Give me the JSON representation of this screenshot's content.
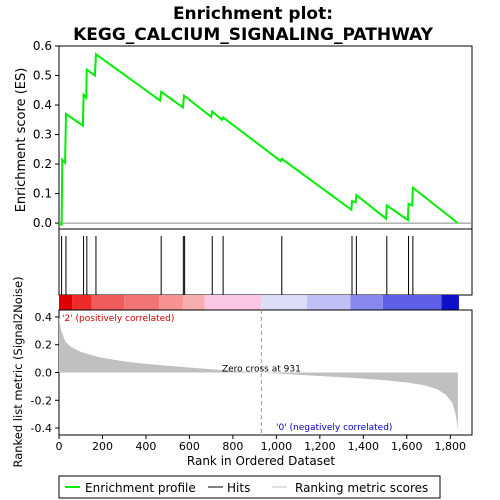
{
  "chart_data": {
    "type": "line",
    "title_line1": "Enrichment plot:",
    "title_line2": "KEGG_CALCIUM_SIGNALING_PATHWAY",
    "es_panel": {
      "ylabel": "Enrichment score (ES)",
      "ylim": [
        -0.02,
        0.6
      ],
      "yticks": [
        "0.0",
        "0.1",
        "0.2",
        "0.3",
        "0.4",
        "0.5",
        "0.6"
      ],
      "ytick_values": [
        0.0,
        0.1,
        0.2,
        0.3,
        0.4,
        0.5,
        0.6
      ],
      "series": {
        "name": "Enrichment profile",
        "color": "#00ee00",
        "x": [
          0,
          12,
          15,
          28,
          32,
          110,
          113,
          125,
          128,
          165,
          170,
          465,
          470,
          570,
          575,
          700,
          705,
          750,
          755,
          1020,
          1025,
          1345,
          1348,
          1365,
          1368,
          1505,
          1508,
          1605,
          1608,
          1625,
          1628,
          1835
        ],
        "y": [
          0.0,
          -0.005,
          0.215,
          0.205,
          0.37,
          0.33,
          0.435,
          0.425,
          0.52,
          0.5,
          0.572,
          0.415,
          0.445,
          0.392,
          0.432,
          0.36,
          0.378,
          0.35,
          0.358,
          0.21,
          0.218,
          0.045,
          0.075,
          0.07,
          0.095,
          0.015,
          0.06,
          0.01,
          0.065,
          0.06,
          0.12,
          0.0
        ]
      }
    },
    "hits": {
      "positions": [
        12,
        32,
        113,
        128,
        170,
        470,
        572,
        578,
        705,
        755,
        1025,
        1348,
        1368,
        1508,
        1608,
        1628
      ],
      "color": "#000000"
    },
    "ranking_bar": {
      "segments": [
        {
          "from": 0,
          "to": 60,
          "color": "#dd0000"
        },
        {
          "from": 60,
          "to": 150,
          "color": "#ee2a2a"
        },
        {
          "from": 150,
          "to": 300,
          "color": "#f05c5c"
        },
        {
          "from": 300,
          "to": 460,
          "color": "#f27474"
        },
        {
          "from": 460,
          "to": 570,
          "color": "#f69292"
        },
        {
          "from": 570,
          "to": 670,
          "color": "#f8aeae"
        },
        {
          "from": 670,
          "to": 930,
          "color": "#fbc6e6"
        },
        {
          "from": 930,
          "to": 1140,
          "color": "#dcdcf6"
        },
        {
          "from": 1140,
          "to": 1340,
          "color": "#c0c0f6"
        },
        {
          "from": 1340,
          "to": 1490,
          "color": "#8888ee"
        },
        {
          "from": 1490,
          "to": 1760,
          "color": "#5e5ee6"
        },
        {
          "from": 1760,
          "to": 1840,
          "color": "#1010c8"
        }
      ]
    },
    "metric_panel": {
      "ylabel": "Ranked list metric (Signal2Noise)",
      "xlabel": "Rank in Ordered Dataset",
      "xlim": [
        0,
        1900
      ],
      "xticks": [
        "0",
        "200",
        "400",
        "600",
        "800",
        "1,000",
        "1,200",
        "1,400",
        "1,600",
        "1,800"
      ],
      "xtick_values": [
        0,
        200,
        400,
        600,
        800,
        1000,
        1200,
        1400,
        1600,
        1800
      ],
      "ylim": [
        -0.45,
        0.45
      ],
      "yticks": [
        "-0.4",
        "-0.2",
        "0.0",
        "0.2",
        "0.4"
      ],
      "ytick_values": [
        -0.4,
        -0.2,
        0.0,
        0.2,
        0.4
      ],
      "fill_color": "#c0c0c0",
      "x": [
        0,
        10,
        30,
        60,
        100,
        150,
        200,
        300,
        400,
        500,
        600,
        700,
        800,
        900,
        931,
        1000,
        1100,
        1200,
        1300,
        1400,
        1500,
        1600,
        1680,
        1740,
        1780,
        1810,
        1825,
        1835
      ],
      "y": [
        0.4,
        0.3,
        0.22,
        0.18,
        0.15,
        0.125,
        0.105,
        0.08,
        0.062,
        0.048,
        0.036,
        0.024,
        0.013,
        0.004,
        0.0,
        -0.007,
        -0.016,
        -0.025,
        -0.034,
        -0.044,
        -0.056,
        -0.072,
        -0.092,
        -0.12,
        -0.16,
        -0.22,
        -0.3,
        -0.41
      ],
      "zero_cross_label": "Zero cross at 931",
      "zero_cross": 931,
      "pos_label": "'2' (positively correlated)",
      "pos_color": "#cc0000",
      "neg_label": "'0' (negatively correlated)",
      "neg_color": "#0000cc"
    },
    "legend": {
      "items": [
        {
          "label": "Enrichment profile",
          "color": "#00ee00"
        },
        {
          "label": "Hits",
          "color": "#000000"
        },
        {
          "label": "Ranking metric scores",
          "color": "#c0c0c0"
        }
      ]
    }
  }
}
